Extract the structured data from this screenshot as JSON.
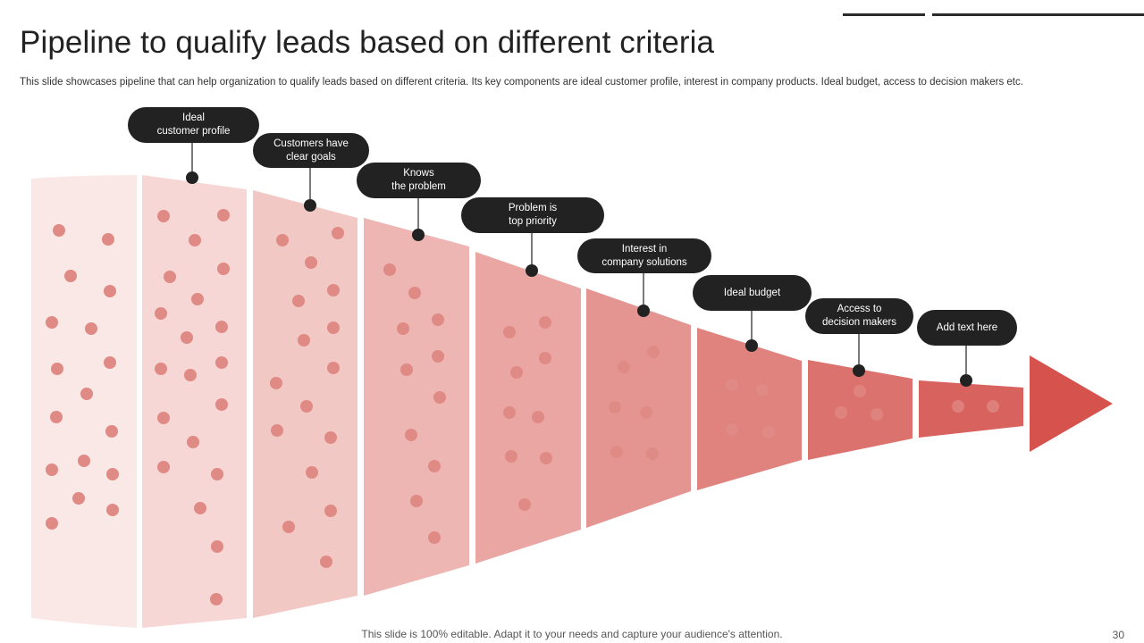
{
  "header": {
    "title": "Pipeline to qualify leads based on different criteria",
    "subtitle": "This slide showcases pipeline that can help organization to qualify leads based on different criteria. Its key components are ideal customer profile, interest in company products. Ideal budget, access to decision makers etc."
  },
  "pipeline": {
    "stages": [
      {
        "label": ""
      },
      {
        "label": "Ideal\ncustomer profile"
      },
      {
        "label": "Customers have\nclear goals"
      },
      {
        "label": "Knows\nthe problem"
      },
      {
        "label": "Problem is\ntop priority"
      },
      {
        "label": "Interest in\ncompany solutions"
      },
      {
        "label": "Ideal budget"
      },
      {
        "label": "Access to\ndecision makers"
      },
      {
        "label": "Add text here"
      }
    ]
  },
  "colors": {
    "segments": [
      "#fae8e7",
      "#f6d7d5",
      "#f2c8c4",
      "#edb6b2",
      "#e9a6a2",
      "#e49591",
      "#e0837f",
      "#dc726e",
      "#d8625d"
    ],
    "arrow": "#d5534c",
    "label_bg": "#222222",
    "dot": "#e08a85"
  },
  "footer": {
    "note": "This slide is 100% editable. Adapt it to your needs and capture your audience's attention.",
    "page_number": "30"
  }
}
